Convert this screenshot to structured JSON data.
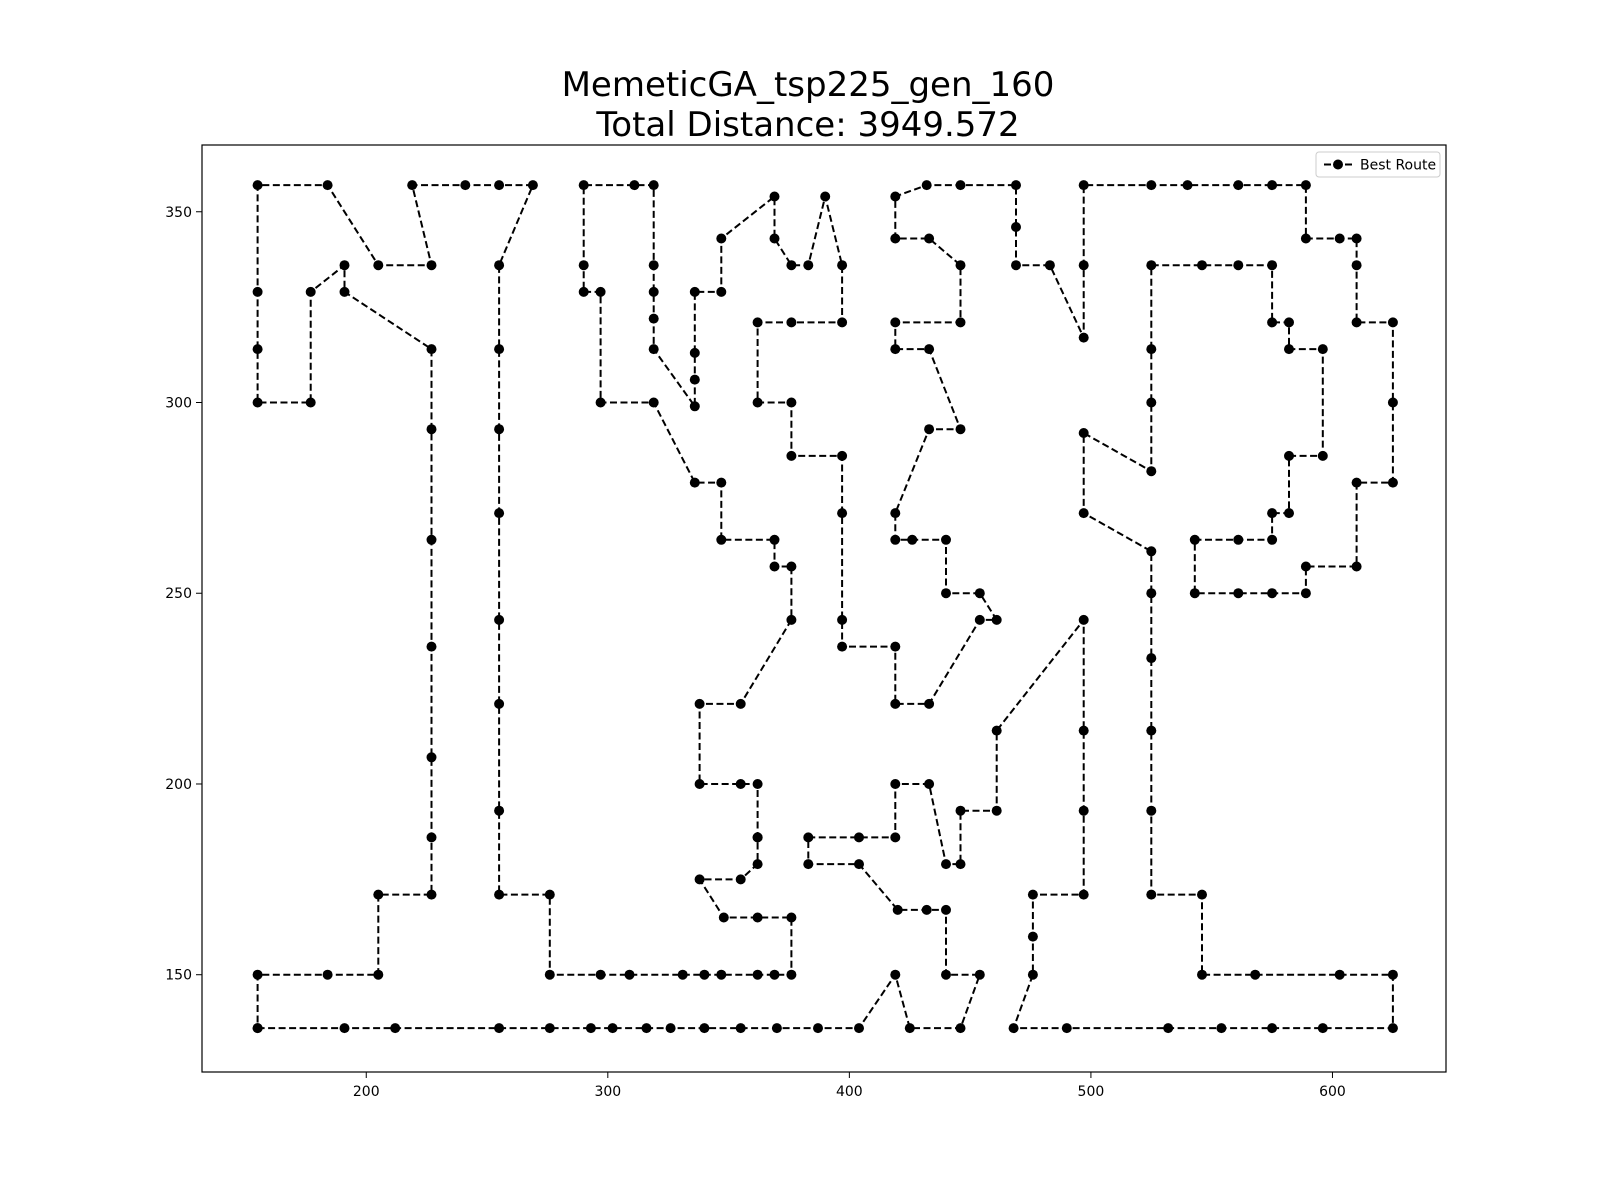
{
  "chart_data": {
    "type": "line",
    "title": "MemeticGA_tsp225_gen_160",
    "subtitle": "Total Distance: 3949.572",
    "xlabel": "",
    "ylabel": "",
    "xlim": [
      132,
      647
    ],
    "ylim": [
      124.5,
      367.5
    ],
    "xticks": [
      200,
      300,
      400,
      500,
      600
    ],
    "yticks": [
      150,
      200,
      250,
      300,
      350
    ],
    "grid": false,
    "legend": {
      "position": "top-right",
      "entries": [
        "Best Route"
      ]
    },
    "series": [
      {
        "name": "Best Route",
        "color": "#000000",
        "line_style": "dashed",
        "marker": "circle",
        "points": [
          [
            155,
            136
          ],
          [
            191,
            136
          ],
          [
            212,
            136
          ],
          [
            255,
            136
          ],
          [
            276,
            136
          ],
          [
            293,
            136
          ],
          [
            302,
            136
          ],
          [
            316,
            136
          ],
          [
            326,
            136
          ],
          [
            340,
            136
          ],
          [
            355,
            136
          ],
          [
            370,
            136
          ],
          [
            387,
            136
          ],
          [
            404,
            136
          ],
          [
            419,
            150
          ],
          [
            425,
            136
          ],
          [
            446,
            136
          ],
          [
            454,
            150
          ],
          [
            440,
            150
          ],
          [
            440,
            167
          ],
          [
            432,
            167
          ],
          [
            420,
            167
          ],
          [
            404,
            179
          ],
          [
            383,
            179
          ],
          [
            383,
            186
          ],
          [
            404,
            186
          ],
          [
            419,
            186
          ],
          [
            419,
            200
          ],
          [
            433,
            200
          ],
          [
            440,
            179
          ],
          [
            446,
            179
          ],
          [
            446,
            193
          ],
          [
            461,
            193
          ],
          [
            461,
            214
          ],
          [
            497,
            243
          ],
          [
            497,
            214
          ],
          [
            497,
            193
          ],
          [
            497,
            171
          ],
          [
            476,
            171
          ],
          [
            476,
            160
          ],
          [
            476,
            150
          ],
          [
            468,
            136
          ],
          [
            490,
            136
          ],
          [
            532,
            136
          ],
          [
            554,
            136
          ],
          [
            575,
            136
          ],
          [
            596,
            136
          ],
          [
            625,
            136
          ],
          [
            625,
            150
          ],
          [
            603,
            150
          ],
          [
            568,
            150
          ],
          [
            546,
            150
          ],
          [
            546,
            171
          ],
          [
            525,
            171
          ],
          [
            525,
            193
          ],
          [
            525,
            214
          ],
          [
            525,
            233
          ],
          [
            525,
            250
          ],
          [
            525,
            261
          ],
          [
            497,
            271
          ],
          [
            497,
            292
          ],
          [
            525,
            282
          ],
          [
            525,
            300
          ],
          [
            525,
            314
          ],
          [
            525,
            336
          ],
          [
            546,
            336
          ],
          [
            561,
            336
          ],
          [
            575,
            336
          ],
          [
            575,
            321
          ],
          [
            582,
            321
          ],
          [
            582,
            314
          ],
          [
            596,
            314
          ],
          [
            596,
            286
          ],
          [
            582,
            286
          ],
          [
            582,
            271
          ],
          [
            575,
            271
          ],
          [
            575,
            264
          ],
          [
            561,
            264
          ],
          [
            543,
            264
          ],
          [
            543,
            250
          ],
          [
            561,
            250
          ],
          [
            575,
            250
          ],
          [
            589,
            250
          ],
          [
            589,
            257
          ],
          [
            610,
            257
          ],
          [
            610,
            279
          ],
          [
            625,
            279
          ],
          [
            625,
            300
          ],
          [
            625,
            321
          ],
          [
            610,
            321
          ],
          [
            610,
            336
          ],
          [
            610,
            343
          ],
          [
            603,
            343
          ],
          [
            589,
            343
          ],
          [
            589,
            357
          ],
          [
            575,
            357
          ],
          [
            561,
            357
          ],
          [
            540,
            357
          ],
          [
            525,
            357
          ],
          [
            497,
            357
          ],
          [
            497,
            336
          ],
          [
            497,
            317
          ],
          [
            483,
            336
          ],
          [
            469,
            336
          ],
          [
            469,
            346
          ],
          [
            469,
            357
          ],
          [
            446,
            357
          ],
          [
            432,
            357
          ],
          [
            419,
            354
          ],
          [
            419,
            343
          ],
          [
            433,
            343
          ],
          [
            446,
            336
          ],
          [
            446,
            321
          ],
          [
            419,
            321
          ],
          [
            419,
            314
          ],
          [
            433,
            314
          ],
          [
            446,
            293
          ],
          [
            433,
            293
          ],
          [
            419,
            271
          ],
          [
            419,
            264
          ],
          [
            426,
            264
          ],
          [
            440,
            264
          ],
          [
            440,
            250
          ],
          [
            454,
            250
          ],
          [
            461,
            243
          ],
          [
            454,
            243
          ],
          [
            433,
            221
          ],
          [
            419,
            221
          ],
          [
            419,
            236
          ],
          [
            397,
            236
          ],
          [
            397,
            243
          ],
          [
            397,
            271
          ],
          [
            397,
            286
          ],
          [
            376,
            286
          ],
          [
            376,
            300
          ],
          [
            362,
            300
          ],
          [
            362,
            321
          ],
          [
            376,
            321
          ],
          [
            397,
            321
          ],
          [
            397,
            336
          ],
          [
            390,
            354
          ],
          [
            383,
            336
          ],
          [
            376,
            336
          ],
          [
            369,
            343
          ],
          [
            369,
            354
          ],
          [
            347,
            343
          ],
          [
            347,
            329
          ],
          [
            336,
            329
          ],
          [
            336,
            313
          ],
          [
            336,
            306
          ],
          [
            336,
            299
          ],
          [
            319,
            314
          ],
          [
            319,
            322
          ],
          [
            319,
            329
          ],
          [
            319,
            336
          ],
          [
            319,
            357
          ],
          [
            311,
            357
          ],
          [
            290,
            357
          ],
          [
            290,
            336
          ],
          [
            290,
            329
          ],
          [
            297,
            329
          ],
          [
            297,
            300
          ],
          [
            319,
            300
          ],
          [
            336,
            279
          ],
          [
            347,
            279
          ],
          [
            347,
            264
          ],
          [
            369,
            264
          ],
          [
            369,
            257
          ],
          [
            376,
            257
          ],
          [
            376,
            243
          ],
          [
            355,
            221
          ],
          [
            338,
            221
          ],
          [
            338,
            200
          ],
          [
            355,
            200
          ],
          [
            362,
            200
          ],
          [
            362,
            186
          ],
          [
            362,
            186
          ],
          [
            362,
            179
          ],
          [
            355,
            175
          ],
          [
            338,
            175
          ],
          [
            348,
            165
          ],
          [
            362,
            165
          ],
          [
            376,
            165
          ],
          [
            376,
            150
          ],
          [
            369,
            150
          ],
          [
            362,
            150
          ],
          [
            347,
            150
          ],
          [
            340,
            150
          ],
          [
            331,
            150
          ],
          [
            309,
            150
          ],
          [
            297,
            150
          ],
          [
            276,
            150
          ],
          [
            276,
            171
          ],
          [
            255,
            171
          ],
          [
            255,
            193
          ],
          [
            255,
            221
          ],
          [
            255,
            243
          ],
          [
            255,
            271
          ],
          [
            255,
            293
          ],
          [
            255,
            314
          ],
          [
            255,
            336
          ],
          [
            269,
            357
          ],
          [
            255,
            357
          ],
          [
            241,
            357
          ],
          [
            219,
            357
          ],
          [
            227,
            336
          ],
          [
            205,
            336
          ],
          [
            184,
            357
          ],
          [
            155,
            357
          ],
          [
            155,
            329
          ],
          [
            155,
            314
          ],
          [
            155,
            300
          ],
          [
            177,
            300
          ],
          [
            177,
            329
          ],
          [
            191,
            336
          ],
          [
            191,
            329
          ],
          [
            227,
            314
          ],
          [
            227,
            293
          ],
          [
            227,
            264
          ],
          [
            227,
            236
          ],
          [
            227,
            207
          ],
          [
            227,
            186
          ],
          [
            227,
            171
          ],
          [
            205,
            171
          ],
          [
            205,
            150
          ],
          [
            184,
            150
          ],
          [
            155,
            150
          ],
          [
            155,
            136
          ]
        ]
      }
    ]
  }
}
